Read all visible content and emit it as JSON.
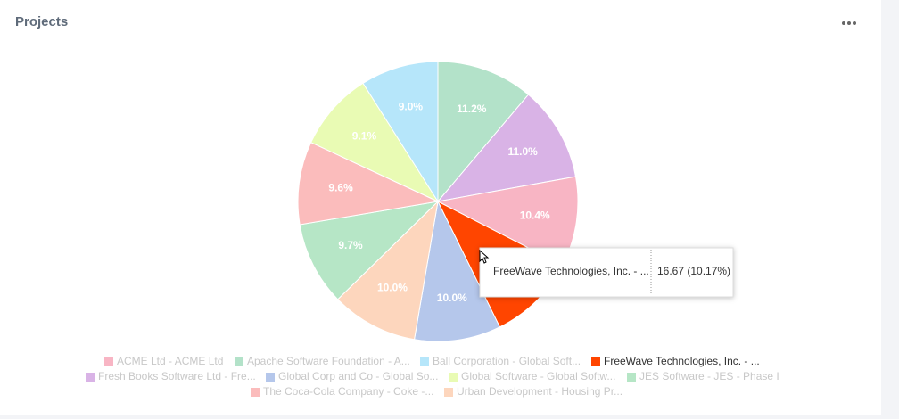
{
  "header": {
    "title": "Projects"
  },
  "chart_data": {
    "type": "pie",
    "categories": [
      "Apache Software Foundation - A...",
      "Fresh Books Software Ltd - Fre...",
      "ACME Ltd - ACME Ltd",
      "FreeWave Technologies, Inc. - ...",
      "Global Corp and Co - Global So...",
      "Urban Development - Housing Pr...",
      "JES Software - JES - Phase I",
      "The Coca-Cola Company - Coke -...",
      "Global Software - Global Softw...",
      "Ball Corporation - Global Soft..."
    ],
    "values": [
      11.2,
      11.0,
      10.4,
      10.2,
      10.0,
      10.0,
      9.7,
      9.6,
      9.1,
      9.0
    ],
    "value_labels": [
      "11.2%",
      "11.0%",
      "10.4%",
      "10.2%",
      "10.0%",
      "10.0%",
      "9.7%",
      "9.6%",
      "9.1%",
      "9.0%"
    ],
    "colors": [
      "#b3e2c9",
      "#d9b3e6",
      "#f8b5c4",
      "#ff4500",
      "#b5c7eb",
      "#fdd6bd",
      "#b6e6c6",
      "#fbbcbc",
      "#e9fbb4",
      "#b6e6fa"
    ],
    "tooltip": {
      "label": "FreeWave Technologies, Inc. - ...",
      "value": "16.67 (10.17%)"
    }
  }
}
